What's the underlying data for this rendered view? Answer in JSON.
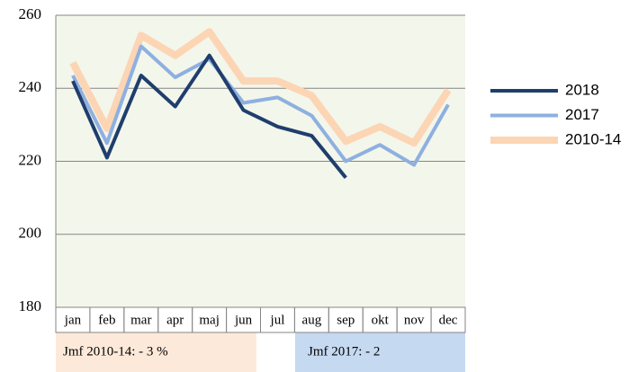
{
  "chart_data": {
    "type": "line",
    "categories": [
      "jan",
      "feb",
      "mar",
      "apr",
      "maj",
      "jun",
      "jul",
      "aug",
      "sep",
      "okt",
      "nov",
      "dec"
    ],
    "series": [
      {
        "name": "2018",
        "color": "#1f3e6e",
        "values": [
          242,
          221,
          243.5,
          235,
          249,
          234,
          229.5,
          227,
          215.5,
          null,
          null,
          null
        ]
      },
      {
        "name": "2017",
        "color": "#8eb0e0",
        "values": [
          243.5,
          225,
          251.5,
          243,
          248,
          236,
          237.5,
          232.5,
          220,
          224.5,
          219,
          235.5
        ]
      },
      {
        "name": "2010-14",
        "color": "#fcd5b5",
        "values": [
          247,
          229,
          254.5,
          249,
          255.5,
          242,
          242,
          238,
          225.5,
          229.5,
          225,
          239.5
        ]
      }
    ],
    "ylim": [
      180,
      260
    ],
    "yticks": [
      180,
      200,
      220,
      240,
      260
    ],
    "grid": true,
    "legend": "right",
    "annotations": [
      "Jmf 2010-14: - 3 %",
      "Jmf 2017: - 2"
    ]
  }
}
